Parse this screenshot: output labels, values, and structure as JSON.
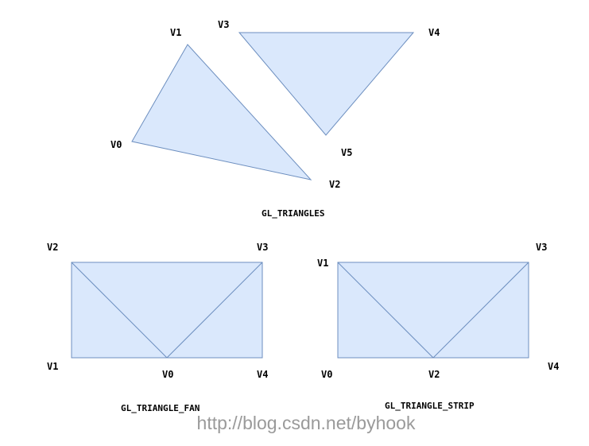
{
  "triangles_diagram": {
    "caption": "GL_TRIANGLES",
    "labels": {
      "v0": "V0",
      "v1": "V1",
      "v2": "V2",
      "v3": "V3",
      "v4": "V4",
      "v5": "V5"
    }
  },
  "fan_diagram": {
    "caption": "GL_TRIANGLE_FAN",
    "labels": {
      "v0": "V0",
      "v1": "V1",
      "v2": "V2",
      "v3": "V3",
      "v4": "V4"
    }
  },
  "strip_diagram": {
    "caption": "GL_TRIANGLE_STRIP",
    "labels": {
      "v0": "V0",
      "v1": "V1",
      "v2": "V2",
      "v3": "V3",
      "v4": "V4"
    }
  },
  "watermark": "http://blog.csdn.net/byhook",
  "colors": {
    "fill": "#dae8fc",
    "stroke": "#6c8ebf",
    "watermark": "#9a9a9a"
  }
}
